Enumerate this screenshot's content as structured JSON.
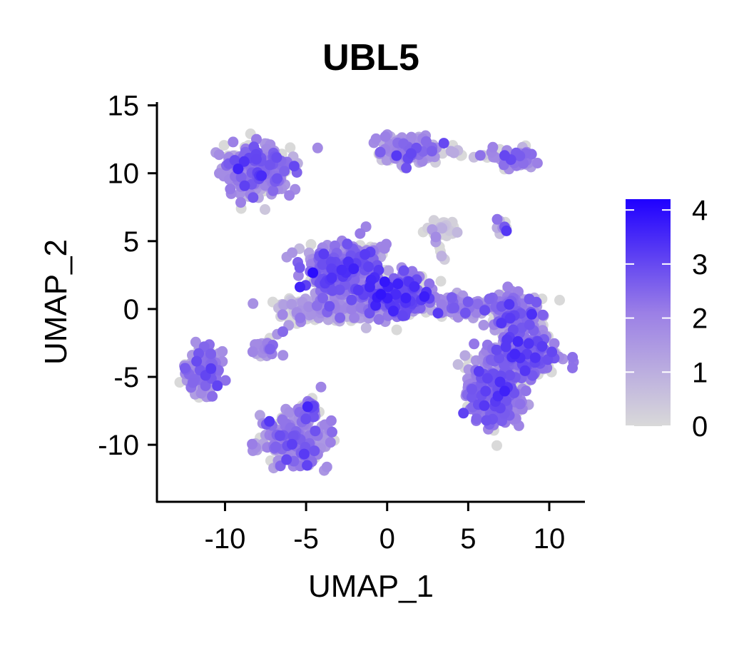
{
  "chart_data": {
    "type": "scatter",
    "title": "UBL5",
    "xlabel": "UMAP_1",
    "ylabel": "UMAP_2",
    "xlim": [
      -14.2,
      12.2
    ],
    "ylim": [
      -14.2,
      15.4
    ],
    "x_ticks": [
      -10,
      -5,
      0,
      5,
      10
    ],
    "y_ticks": [
      -10,
      -5,
      0,
      5,
      10,
      15
    ],
    "grid": false,
    "legend_position": "right",
    "color_scale": {
      "name": "expression",
      "min": 0,
      "max": 4.2,
      "ticks": [
        0,
        1,
        2,
        3,
        4
      ],
      "low_color": "#d9d9d9",
      "high_color": "#1f00ff"
    },
    "clusters": [
      {
        "cx": -8.0,
        "cy": 10.2,
        "sx": 1.3,
        "sy": 1.1,
        "weight": 320,
        "mean_expr": 1.9
      },
      {
        "cx": 1.2,
        "cy": 11.7,
        "sx": 1.2,
        "sy": 0.6,
        "weight": 200,
        "mean_expr": 1.6
      },
      {
        "cx": 7.9,
        "cy": 11.1,
        "sx": 0.8,
        "sy": 0.5,
        "weight": 70,
        "mean_expr": 1.7
      },
      {
        "cx": 3.4,
        "cy": 5.9,
        "sx": 0.5,
        "sy": 0.4,
        "weight": 50,
        "mean_expr": 0.1
      },
      {
        "cx": 7.2,
        "cy": 6.2,
        "sx": 0.4,
        "sy": 0.4,
        "weight": 10,
        "mean_expr": 1.8
      },
      {
        "cx": -2.7,
        "cy": 3.0,
        "sx": 1.4,
        "sy": 1.2,
        "weight": 420,
        "mean_expr": 2.0
      },
      {
        "cx": 0.5,
        "cy": 1.0,
        "sx": 1.6,
        "sy": 1.0,
        "weight": 380,
        "mean_expr": 2.3
      },
      {
        "cx": -3.2,
        "cy": 0.0,
        "sx": 2.3,
        "sy": 0.6,
        "weight": 220,
        "mean_expr": 1.3
      },
      {
        "cx": 4.6,
        "cy": 0.2,
        "sx": 1.1,
        "sy": 0.5,
        "weight": 90,
        "mean_expr": 1.6
      },
      {
        "cx": -7.5,
        "cy": -3.0,
        "sx": 0.5,
        "sy": 0.4,
        "weight": 30,
        "mean_expr": 1.6
      },
      {
        "cx": -11.4,
        "cy": -4.7,
        "sx": 0.7,
        "sy": 1.0,
        "weight": 160,
        "mean_expr": 1.7
      },
      {
        "cx": -5.8,
        "cy": -9.6,
        "sx": 1.2,
        "sy": 1.2,
        "weight": 330,
        "mean_expr": 1.8
      },
      {
        "cx": -4.6,
        "cy": -7.5,
        "sx": 0.3,
        "sy": 0.5,
        "weight": 25,
        "mean_expr": 2.4
      },
      {
        "cx": 6.7,
        "cy": -6.0,
        "sx": 1.2,
        "sy": 1.6,
        "weight": 380,
        "mean_expr": 2.0
      },
      {
        "cx": 8.6,
        "cy": -3.4,
        "sx": 1.3,
        "sy": 1.0,
        "weight": 300,
        "mean_expr": 2.0
      },
      {
        "cx": 7.8,
        "cy": -0.3,
        "sx": 1.0,
        "sy": 1.0,
        "weight": 220,
        "mean_expr": 2.0
      }
    ],
    "bridges": [
      {
        "from": [
          3.5,
          11.6
        ],
        "to": [
          7.2,
          11.1
        ],
        "count": 14,
        "mean_expr": 1.5
      },
      {
        "from": [
          -7.8,
          -2.6
        ],
        "to": [
          -4.0,
          0.2
        ],
        "count": 12,
        "mean_expr": 1.4
      },
      {
        "from": [
          3.0,
          5.2
        ],
        "to": [
          3.6,
          3.6
        ],
        "count": 6,
        "mean_expr": 0.5
      }
    ]
  }
}
